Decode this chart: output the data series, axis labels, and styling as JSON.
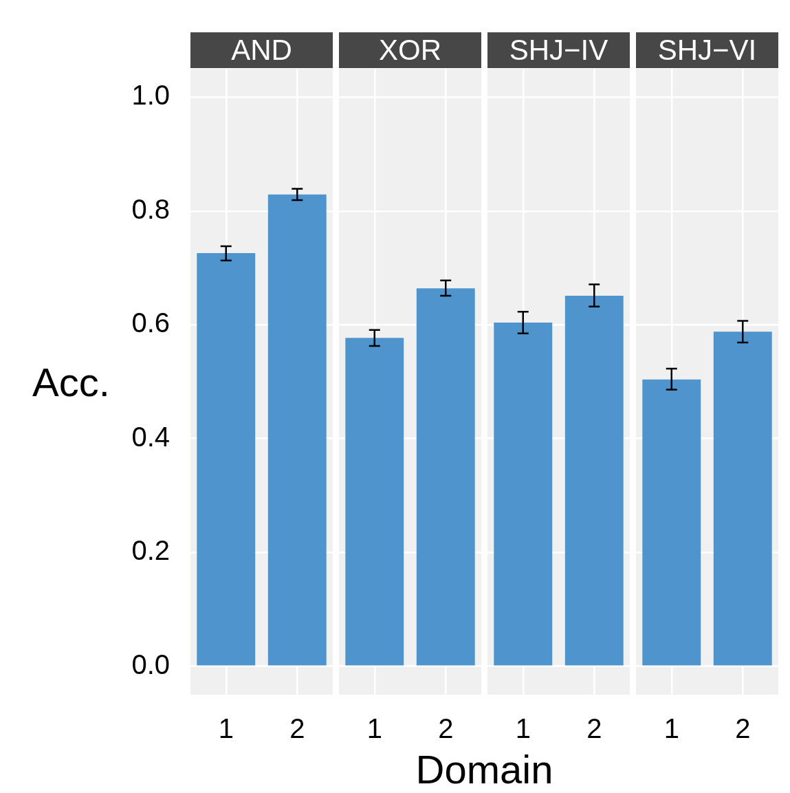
{
  "chart_data": [
    {
      "type": "bar",
      "title": "AND",
      "ylabel": "Acc.",
      "categories": [
        "1",
        "2"
      ],
      "values": [
        0.726,
        0.829
      ],
      "errors": [
        [
          0.713,
          0.738
        ],
        [
          0.819,
          0.839
        ]
      ],
      "color": "#4f94cd",
      "ylim": [
        -0.05,
        1.05
      ],
      "yticks": [
        {
          "value": 0,
          "label": "0.0"
        },
        0.2,
        0.4,
        0.6,
        0.8,
        {
          "value": 1,
          "label": "1.0"
        }
      ],
      "grid": true
    },
    {
      "type": "bar",
      "title": "XOR",
      "xlabel": "Domain",
      "categories": [
        "1",
        "2"
      ],
      "values": [
        0.577,
        0.664
      ],
      "errors": [
        [
          0.563,
          0.591
        ],
        [
          0.651,
          0.678
        ]
      ],
      "color": "#4f94cd",
      "ylim": [
        -0.05,
        1.05
      ],
      "yticks": [
        0,
        0.2,
        0.4,
        0.6,
        0.8,
        1
      ],
      "grid": true,
      "tick_labels": "x"
    },
    {
      "type": "bar",
      "title": "SHJ−IV",
      "categories": [
        "1",
        "2"
      ],
      "values": [
        0.604,
        0.651
      ],
      "errors": [
        [
          0.585,
          0.623
        ],
        [
          0.632,
          0.671
        ]
      ],
      "color": "#4f94cd",
      "ylim": [
        -0.05,
        1.05
      ],
      "yticks": [
        0,
        0.2,
        0.4,
        0.6,
        0.8,
        1
      ],
      "grid": true,
      "tick_labels": "x"
    },
    {
      "type": "bar",
      "title": "SHJ−VI",
      "categories": [
        "1",
        "2"
      ],
      "values": [
        0.504,
        0.588
      ],
      "errors": [
        [
          0.486,
          0.523
        ],
        [
          0.569,
          0.607
        ]
      ],
      "color": "#4f94cd",
      "ylim": [
        -0.05,
        1.05
      ],
      "yticks": [
        0,
        0.2,
        0.4,
        0.6,
        0.8,
        1
      ],
      "grid": true,
      "tick_labels": "x"
    }
  ]
}
